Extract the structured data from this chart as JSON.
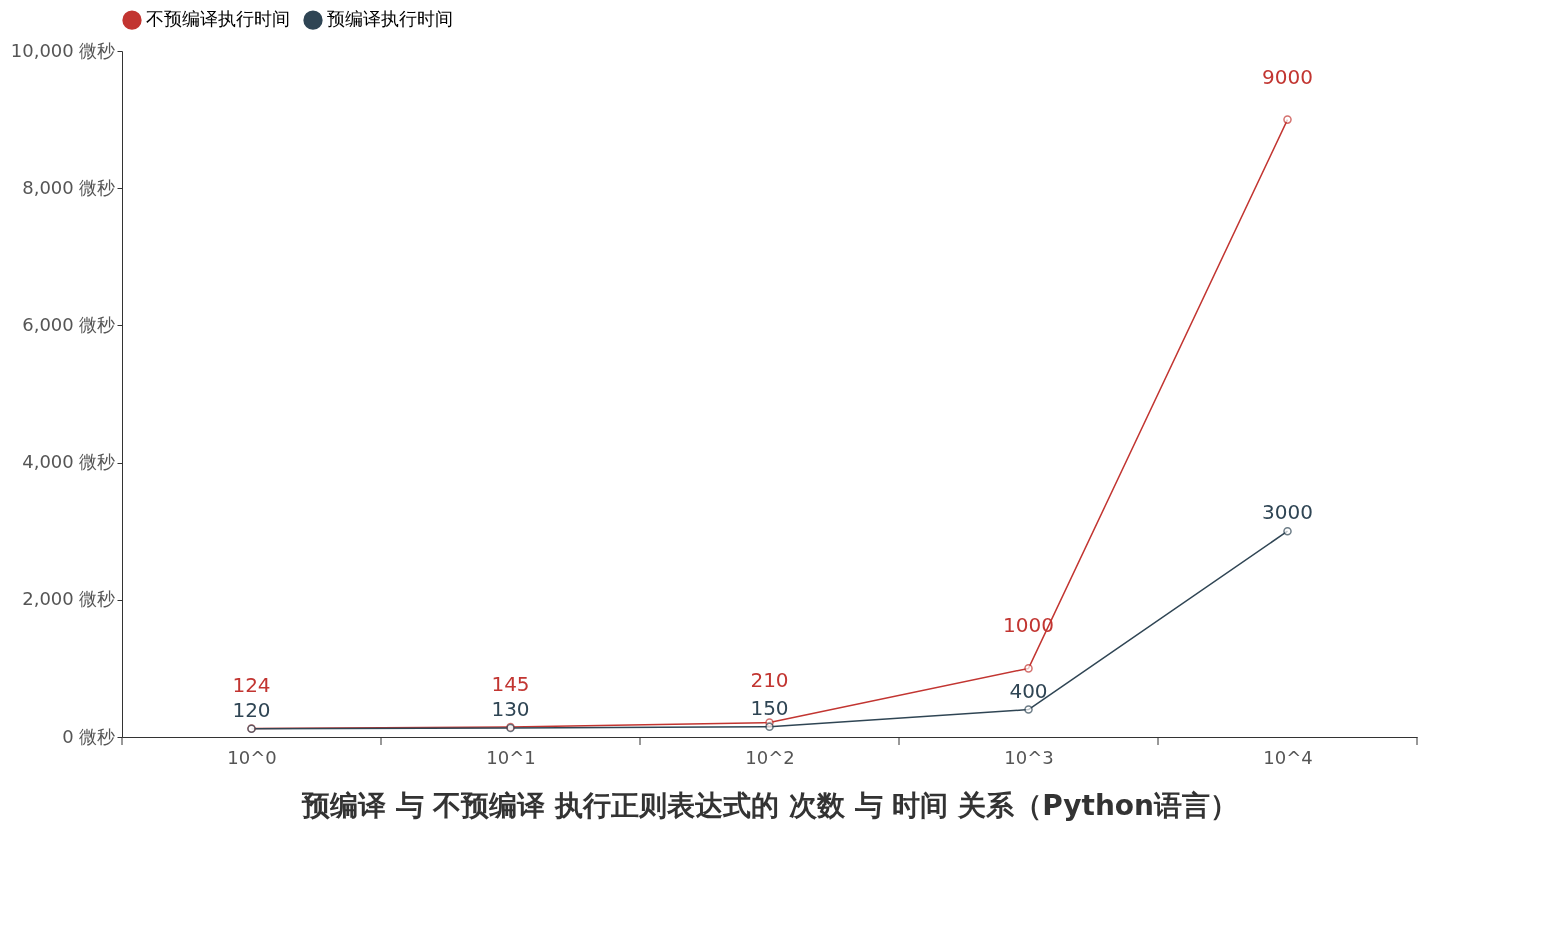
{
  "chart_data": {
    "type": "line",
    "xlabel": "预编译 与 不预编译 执行正则表达式的 次数 与 时间 关系（Python语言）",
    "categories": [
      "10^0",
      "10^1",
      "10^2",
      "10^3",
      "10^4"
    ],
    "series": [
      {
        "name": "不预编译执行时间",
        "color": "#c23531",
        "values": [
          124,
          145,
          210,
          1000,
          9000
        ]
      },
      {
        "name": "预编译执行时间",
        "color": "#2f4554",
        "values": [
          120,
          130,
          150,
          400,
          3000
        ]
      }
    ],
    "ylim": [
      0,
      10000
    ],
    "yticks": [
      {
        "value": 0,
        "label": "0 微秒"
      },
      {
        "value": 2000,
        "label": "2,000 微秒"
      },
      {
        "value": 4000,
        "label": "4,000 微秒"
      },
      {
        "value": 6000,
        "label": "6,000 微秒"
      },
      {
        "value": 8000,
        "label": "8,000 微秒"
      },
      {
        "value": 10000,
        "label": "10,000 微秒"
      }
    ],
    "grid": false,
    "legend": "top",
    "marker": "circle",
    "line_style": "solid",
    "data_labels": true
  }
}
